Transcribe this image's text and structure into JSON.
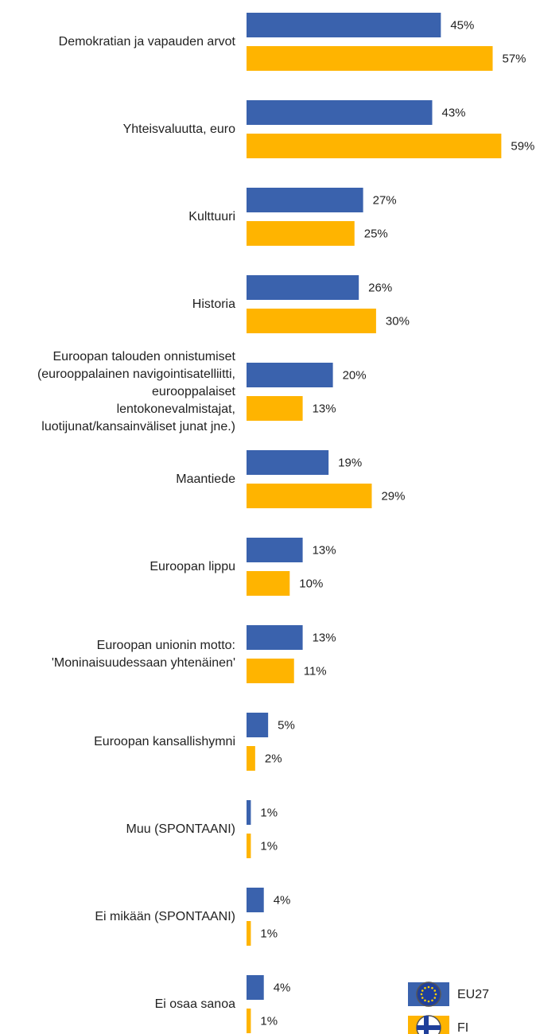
{
  "chart_data": {
    "type": "bar",
    "orientation": "horizontal",
    "categories": [
      "Demokratian ja vapauden arvot",
      "Yhteisvaluutta, euro",
      "Kulttuuri",
      "Historia",
      "Euroopan talouden onnistumiset\n(eurooppalainen navigointisatelliitti,\neurooppalaiset\nlentokonevalmistajat,\nluotijunat/kansainväliset junat jne.)",
      "Maantiede",
      "Euroopan lippu",
      "Euroopan unionin motto:\n'Moninaisuudessaan yhtenäinen'",
      "Euroopan kansallishymni",
      "Muu (SPONTAANI)",
      "Ei mikään (SPONTAANI)",
      "Ei osaa sanoa"
    ],
    "series": [
      {
        "name": "EU27",
        "color": "#3a62ad",
        "values": [
          45,
          43,
          27,
          26,
          20,
          19,
          13,
          13,
          5,
          1,
          4,
          4
        ],
        "value_labels": [
          "45%",
          "43%",
          "27%",
          "26%",
          "20%",
          "19%",
          "13%",
          "13%",
          "5%",
          "1%",
          "4%",
          "4%"
        ]
      },
      {
        "name": "FI",
        "color": "#ffb400",
        "values": [
          57,
          59,
          25,
          30,
          13,
          29,
          10,
          11,
          2,
          1,
          1,
          1
        ],
        "value_labels": [
          "57%",
          "59%",
          "25%",
          "30%",
          "13%",
          "29%",
          "10%",
          "11%",
          "2%",
          "1%",
          "1%",
          "1%"
        ]
      }
    ],
    "legend": "bottom-right"
  }
}
